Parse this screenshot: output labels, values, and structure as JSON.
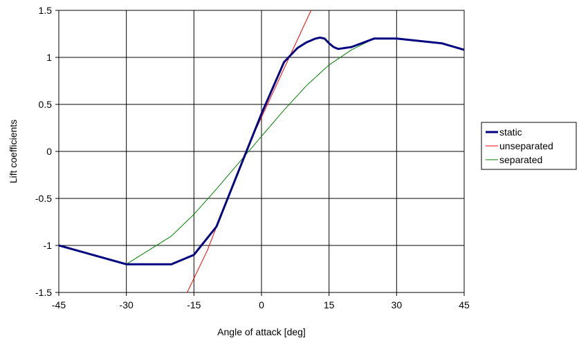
{
  "chart_data": {
    "type": "line",
    "title": "",
    "xlabel": "Angle of attack [deg]",
    "ylabel": "Lift coefficients",
    "xlim": [
      -45,
      45
    ],
    "ylim": [
      -1.5,
      1.5
    ],
    "x_ticks": [
      "-45",
      "-30",
      "-15",
      "0",
      "15",
      "30",
      "45"
    ],
    "y_ticks": [
      "1.5",
      "1",
      "0.5",
      "0",
      "-0.5",
      "-1",
      "-1.5"
    ],
    "grid": true,
    "legend_position": "right",
    "series": [
      {
        "name": "static",
        "color": "#000080",
        "width": 3,
        "points": [
          [
            -45,
            -1.0
          ],
          [
            -30,
            -1.2
          ],
          [
            -20,
            -1.2
          ],
          [
            -15,
            -1.1
          ],
          [
            -10,
            -0.8
          ],
          [
            -5,
            -0.2
          ],
          [
            0,
            0.4
          ],
          [
            5,
            0.95
          ],
          [
            6,
            1.0
          ],
          [
            8,
            1.1
          ],
          [
            10,
            1.16
          ],
          [
            12,
            1.2
          ],
          [
            13,
            1.21
          ],
          [
            14,
            1.2
          ],
          [
            15,
            1.15
          ],
          [
            16,
            1.11
          ],
          [
            17,
            1.09
          ],
          [
            20,
            1.11
          ],
          [
            25,
            1.2
          ],
          [
            30,
            1.2
          ],
          [
            40,
            1.15
          ],
          [
            45,
            1.08
          ]
        ]
      },
      {
        "name": "unseparated",
        "color": "#ff0000",
        "width": 1,
        "points": [
          [
            -16.5,
            -1.5
          ],
          [
            -12,
            -1.05
          ],
          [
            -3.5,
            0.0
          ],
          [
            11,
            1.5
          ]
        ]
      },
      {
        "name": "separated",
        "color": "#008000",
        "width": 1,
        "points": [
          [
            -30,
            -1.2
          ],
          [
            -20,
            -0.9
          ],
          [
            -15,
            -0.67
          ],
          [
            -10,
            -0.4
          ],
          [
            -5,
            -0.12
          ],
          [
            0,
            0.16
          ],
          [
            5,
            0.44
          ],
          [
            10,
            0.7
          ],
          [
            15,
            0.92
          ],
          [
            20,
            1.08
          ],
          [
            25,
            1.2
          ],
          [
            30,
            1.2
          ],
          [
            40,
            1.15
          ],
          [
            45,
            1.08
          ]
        ]
      }
    ]
  }
}
